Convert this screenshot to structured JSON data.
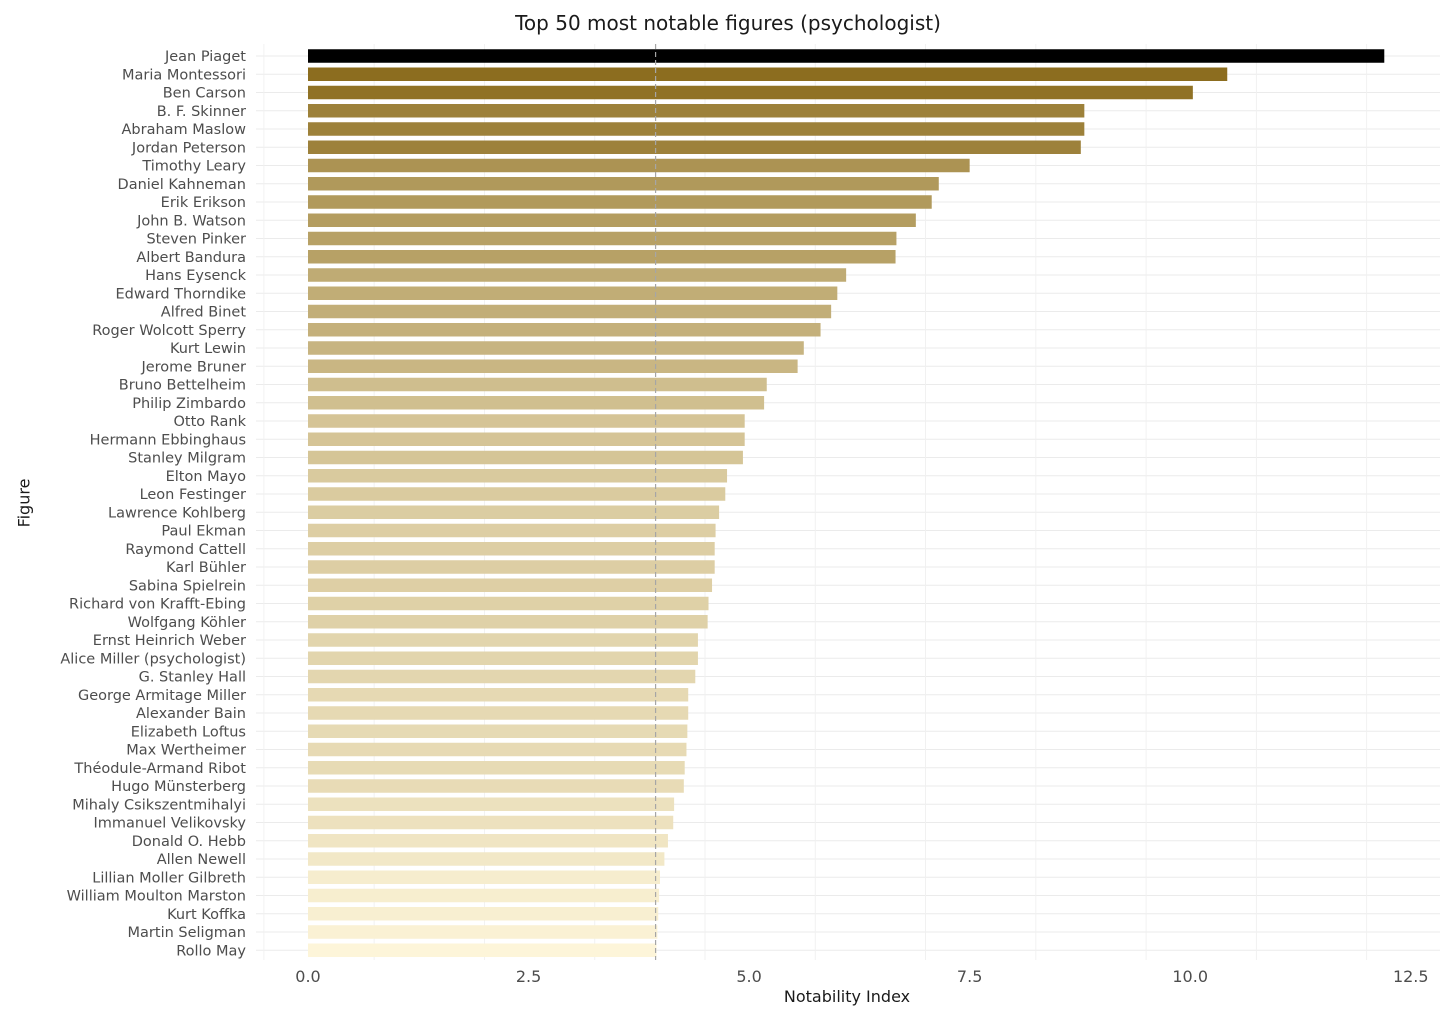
{
  "chart_data": {
    "type": "bar",
    "orientation": "horizontal",
    "title": "Top 50 most notable figures (psychologist)",
    "xlabel": "Notability Index",
    "ylabel": "Figure",
    "xlim": [
      -3.0,
      12.9
    ],
    "xticks": [
      0.0,
      2.5,
      5.0,
      7.5,
      10.0,
      12.5
    ],
    "xtick_labels": [
      "0.0",
      "2.5",
      "5.0",
      "7.5",
      "10.0",
      "12.5"
    ],
    "grid": true,
    "reference_line": {
      "value": 3.94,
      "style": "dashed"
    },
    "color_scale": {
      "low": "#fdf5d9",
      "high": "#8c6d1f",
      "highlight": "#000000"
    },
    "categories": [
      "Jean Piaget",
      "Maria Montessori",
      "Ben Carson",
      "B. F. Skinner",
      "Abraham Maslow",
      "Jordan Peterson",
      "Timothy Leary",
      "Daniel Kahneman",
      "Erik Erikson",
      "John B. Watson",
      "Steven Pinker",
      "Albert Bandura",
      "Hans Eysenck",
      "Edward Thorndike",
      "Alfred Binet",
      "Roger Wolcott Sperry",
      "Kurt Lewin",
      "Jerome Bruner",
      "Bruno Bettelheim",
      "Philip Zimbardo",
      "Otto Rank",
      "Hermann Ebbinghaus",
      "Stanley Milgram",
      "Elton Mayo",
      "Leon Festinger",
      "Lawrence Kohlberg",
      "Paul Ekman",
      "Raymond Cattell",
      "Karl Bühler",
      "Sabina Spielrein",
      "Richard von Krafft-Ebing",
      "Wolfgang Köhler",
      "Ernst Heinrich Weber",
      "Alice Miller (psychologist)",
      "G. Stanley Hall",
      "George Armitage Miller",
      "Alexander Bain",
      "Elizabeth Loftus",
      "Max Wertheimer",
      "Théodule-Armand Ribot",
      "Hugo Münsterberg",
      "Mihaly Csikszentmihalyi",
      "Immanuel Velikovsky",
      "Donald O. Hebb",
      "Allen Newell",
      "Lillian Moller Gilbreth",
      "William Moulton Marston",
      "Kurt Koffka",
      "Martin Seligman",
      "Rollo May"
    ],
    "values": [
      12.2,
      10.42,
      10.03,
      8.8,
      8.8,
      8.76,
      7.5,
      7.15,
      7.07,
      6.89,
      6.67,
      6.66,
      6.1,
      6.0,
      5.93,
      5.81,
      5.62,
      5.55,
      5.2,
      5.17,
      4.95,
      4.95,
      4.93,
      4.75,
      4.73,
      4.66,
      4.62,
      4.61,
      4.61,
      4.58,
      4.54,
      4.53,
      4.42,
      4.42,
      4.39,
      4.31,
      4.31,
      4.3,
      4.29,
      4.27,
      4.26,
      4.15,
      4.14,
      4.08,
      4.04,
      3.99,
      3.98,
      3.97,
      3.96,
      3.95
    ]
  }
}
